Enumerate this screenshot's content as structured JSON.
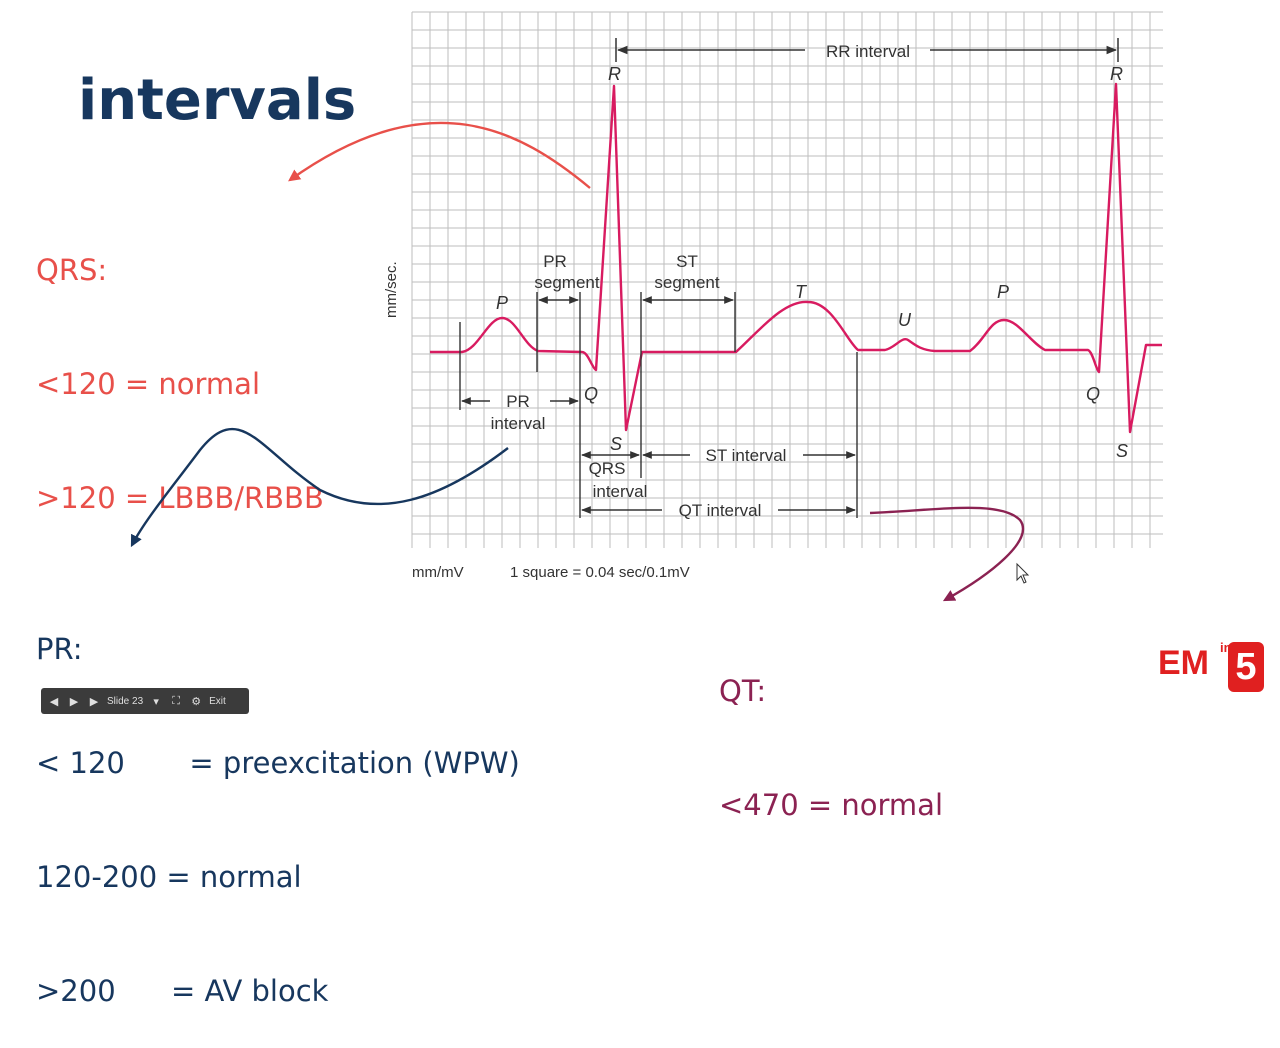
{
  "slide": {
    "title": "intervals"
  },
  "notes": {
    "qrs": [
      "QRS:",
      "<120 = normal",
      ">120 = LBBB/RBBB"
    ],
    "pr": [
      "PR:",
      "< 120       = preexcitation (WPW)",
      "120-200 = normal",
      ">200      = AV block"
    ],
    "qt": [
      "QT:",
      "<470 = normal"
    ]
  },
  "ecg": {
    "axis_label": "mm/sec.",
    "unit_label": "mm/mV",
    "scale_label": "1 square = 0.04 sec/0.1mV",
    "waves": {
      "p1": "P",
      "r1": "R",
      "q1": "Q",
      "s1": "S",
      "t": "T",
      "u": "U",
      "p2": "P",
      "r2": "R",
      "q2": "Q",
      "s2": "S"
    },
    "intervals": {
      "rr": "RR interval",
      "pr_segment_1": "PR",
      "pr_segment_2": "segment",
      "st_segment_1": "ST",
      "st_segment_2": "segment",
      "pr_interval_1": "PR",
      "pr_interval_2": "interval",
      "qrs_interval_1": "QRS",
      "qrs_interval_2": "interval",
      "st_interval": "ST interval",
      "qt_interval": "QT interval"
    },
    "colors": {
      "trace": "#d81b60",
      "grid": "#bdbdbd",
      "qrs_arrow": "#e8504a",
      "pr_arrow": "#17375e",
      "qt_arrow": "#8b2252"
    }
  },
  "logo": {
    "main": "EM",
    "sup": "in",
    "number": "5"
  },
  "toolbar": {
    "slide_label": "Slide 23",
    "exit_label": "Exit"
  }
}
